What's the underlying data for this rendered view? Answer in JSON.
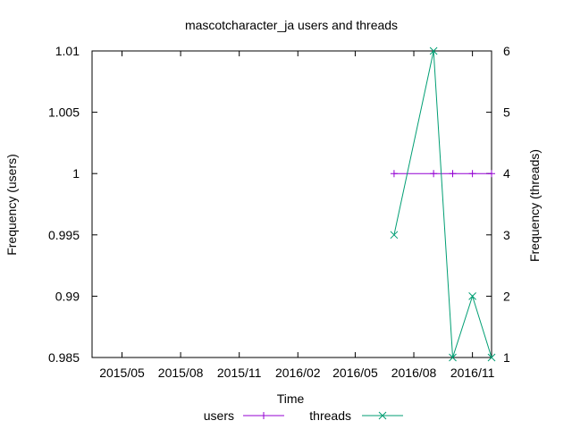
{
  "chart_data": {
    "type": "line",
    "title": "mascotcharacter_ja users and threads",
    "xlabel": "Time",
    "ylabel_left": "Frequency (users)",
    "ylabel_right": "Frequency (threads)",
    "x_ticks": [
      "2015/05",
      "2015/08",
      "2015/11",
      "2016/02",
      "2016/05",
      "2016/08",
      "2016/11"
    ],
    "x_range": [
      "2015-03-15",
      "2016-12-01"
    ],
    "y_left_ticks": [
      "0.985",
      "0.99",
      "0.995",
      "1",
      "1.005",
      "1.01"
    ],
    "y_left_range": [
      0.985,
      1.01
    ],
    "y_right_ticks": [
      "1",
      "2",
      "3",
      "4",
      "5",
      "6"
    ],
    "y_right_range": [
      1,
      6
    ],
    "grid": false,
    "legend_position": "bottom",
    "series": [
      {
        "name": "users",
        "axis": "left",
        "color": "#9400d3",
        "marker": "plus",
        "x": [
          "2016-07-01",
          "2016-09-01",
          "2016-10-01",
          "2016-11-01",
          "2016-12-01"
        ],
        "values": [
          1,
          1,
          1,
          1,
          1
        ]
      },
      {
        "name": "threads",
        "axis": "right",
        "color": "#009e73",
        "marker": "cross",
        "x": [
          "2016-07-01",
          "2016-09-01",
          "2016-10-01",
          "2016-11-01",
          "2016-12-01"
        ],
        "values": [
          3,
          6,
          1,
          2,
          1
        ]
      }
    ]
  }
}
